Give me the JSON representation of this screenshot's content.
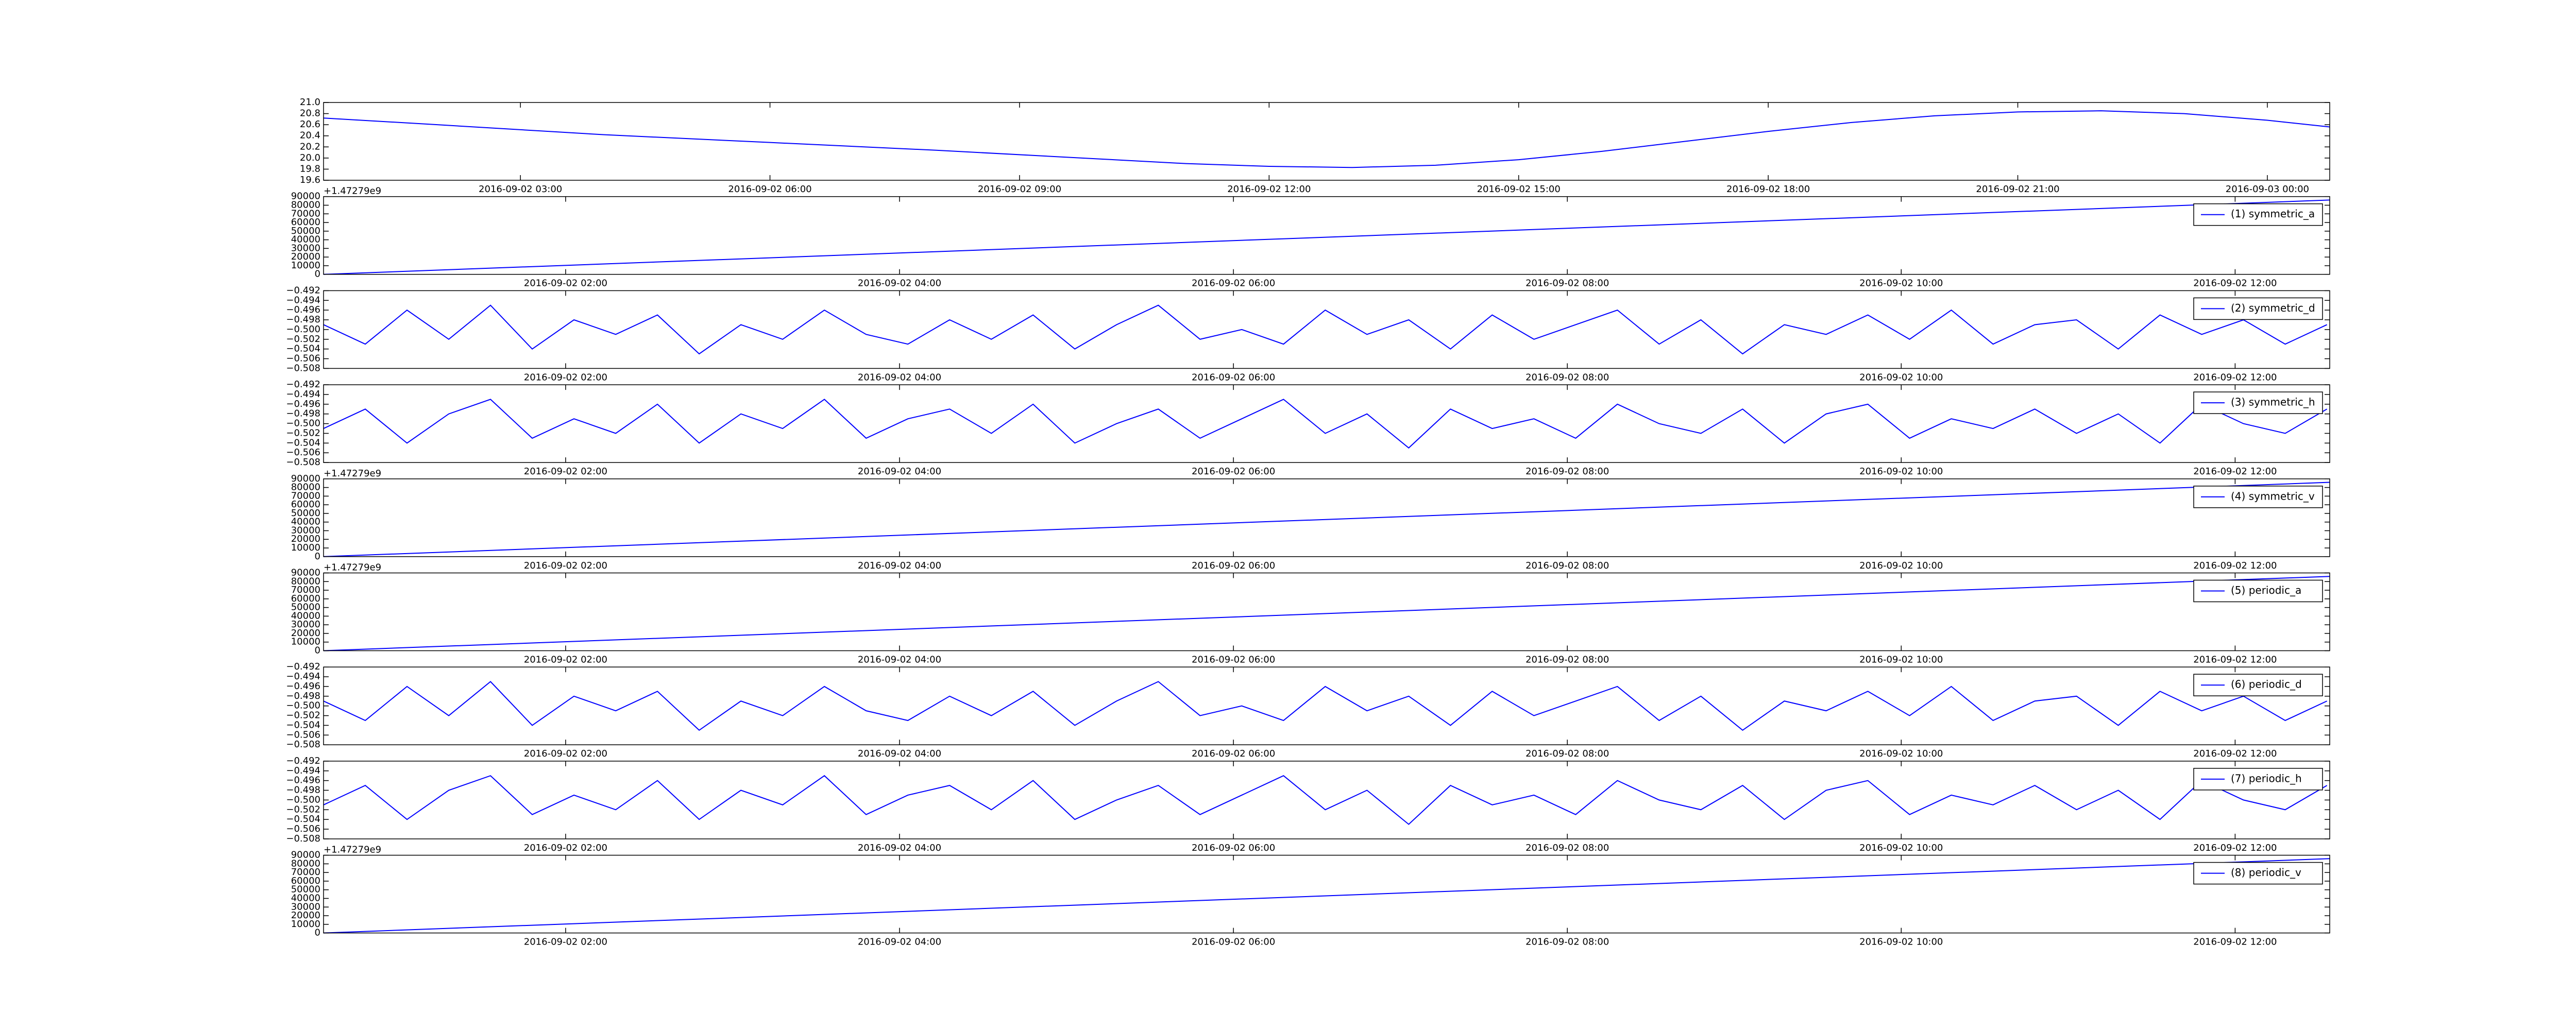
{
  "chart_data": [
    {
      "type": "line",
      "xlim": [
        "2016-09-02 00:38",
        "2016-09-03 00:45"
      ],
      "xticks": [
        "2016-09-02 03:00",
        "2016-09-02 06:00",
        "2016-09-02 09:00",
        "2016-09-02 12:00",
        "2016-09-02 15:00",
        "2016-09-02 18:00",
        "2016-09-02 21:00",
        "2016-09-03 00:00"
      ],
      "ylim": [
        19.6,
        21
      ],
      "yticks": [
        19.6,
        19.8,
        {
          "value": 20,
          "label": "20.0"
        },
        20.2,
        20.4,
        20.6,
        20.8,
        {
          "value": 21,
          "label": "21.0"
        }
      ],
      "x": [
        "2016-09-02 00:38",
        "2016-09-02 02:00",
        "2016-09-02 04:00",
        "2016-09-02 06:00",
        "2016-09-02 08:00",
        "2016-09-02 10:00",
        "2016-09-02 11:00",
        "2016-09-02 12:00",
        "2016-09-02 13:00",
        "2016-09-02 14:00",
        "2016-09-02 15:00",
        "2016-09-02 16:00",
        "2016-09-02 17:00",
        "2016-09-02 18:00",
        "2016-09-02 19:00",
        "2016-09-02 20:00",
        "2016-09-02 21:00",
        "2016-09-02 22:00",
        "2016-09-02 23:00",
        "2016-09-03 00:00",
        "2016-09-03 00:45"
      ],
      "series": [
        {
          "color": "#0000ff",
          "values": [
            20.72,
            20.6,
            20.42,
            20.28,
            20.14,
            19.98,
            19.9,
            19.85,
            19.83,
            19.87,
            19.97,
            20.12,
            20.3,
            20.48,
            20.64,
            20.76,
            20.83,
            20.85,
            20.8,
            20.68,
            20.56
          ]
        }
      ]
    },
    {
      "type": "line",
      "offset_text": "+1.47279e9",
      "legend": "upper right",
      "xlim": [
        "2016-09-02 00:33",
        "2016-09-02 12:34"
      ],
      "xticks": [
        "2016-09-02 02:00",
        "2016-09-02 04:00",
        "2016-09-02 06:00",
        "2016-09-02 08:00",
        "2016-09-02 10:00",
        "2016-09-02 12:00"
      ],
      "ylim": [
        0,
        90000
      ],
      "yticks": [
        0,
        10000,
        20000,
        30000,
        40000,
        50000,
        60000,
        70000,
        80000,
        90000
      ],
      "x": [
        "2016-09-02 00:33",
        "2016-09-02 12:34"
      ],
      "series": [
        {
          "name": "(1) symmetric_a",
          "color": "#0000ff",
          "values": [
            0,
            86000
          ]
        }
      ]
    },
    {
      "type": "line",
      "legend": "upper right",
      "xlim": [
        "2016-09-02 00:33",
        "2016-09-02 12:34"
      ],
      "xticks": [
        "2016-09-02 02:00",
        "2016-09-02 04:00",
        "2016-09-02 06:00",
        "2016-09-02 08:00",
        "2016-09-02 10:00",
        "2016-09-02 12:00"
      ],
      "ylim": [
        -0.508,
        -0.492
      ],
      "yticks": [
        {
          "value": -0.508,
          "label": "−0.508"
        },
        {
          "value": -0.506,
          "label": "−0.506"
        },
        {
          "value": -0.504,
          "label": "−0.504"
        },
        {
          "value": -0.502,
          "label": "−0.502"
        },
        {
          "value": -0.5,
          "label": "−0.500"
        },
        {
          "value": -0.498,
          "label": "−0.498"
        },
        {
          "value": -0.496,
          "label": "−0.496"
        },
        {
          "value": -0.494,
          "label": "−0.494"
        },
        {
          "value": -0.492,
          "label": "−0.492"
        }
      ],
      "x": [
        "2016-09-02 00:33",
        "2016-09-02 00:48",
        "2016-09-02 01:03",
        "2016-09-02 01:18",
        "2016-09-02 01:33",
        "2016-09-02 01:48",
        "2016-09-02 02:03",
        "2016-09-02 02:18",
        "2016-09-02 02:33",
        "2016-09-02 02:48",
        "2016-09-02 03:03",
        "2016-09-02 03:18",
        "2016-09-02 03:33",
        "2016-09-02 03:48",
        "2016-09-02 04:03",
        "2016-09-02 04:18",
        "2016-09-02 04:33",
        "2016-09-02 04:48",
        "2016-09-02 05:03",
        "2016-09-02 05:18",
        "2016-09-02 05:33",
        "2016-09-02 05:48",
        "2016-09-02 06:03",
        "2016-09-02 06:18",
        "2016-09-02 06:33",
        "2016-09-02 06:48",
        "2016-09-02 07:03",
        "2016-09-02 07:18",
        "2016-09-02 07:33",
        "2016-09-02 07:48",
        "2016-09-02 08:03",
        "2016-09-02 08:18",
        "2016-09-02 08:33",
        "2016-09-02 08:48",
        "2016-09-02 09:03",
        "2016-09-02 09:18",
        "2016-09-02 09:33",
        "2016-09-02 09:48",
        "2016-09-02 10:03",
        "2016-09-02 10:18",
        "2016-09-02 10:33",
        "2016-09-02 10:48",
        "2016-09-02 11:03",
        "2016-09-02 11:18",
        "2016-09-02 11:33",
        "2016-09-02 11:48",
        "2016-09-02 12:03",
        "2016-09-02 12:18",
        "2016-09-02 12:33"
      ],
      "series": [
        {
          "name": "(2) symmetric_d",
          "color": "#0000ff",
          "values": [
            -0.499,
            -0.503,
            -0.496,
            -0.502,
            -0.495,
            -0.504,
            -0.498,
            -0.501,
            -0.497,
            -0.505,
            -0.499,
            -0.502,
            -0.496,
            -0.501,
            -0.503,
            -0.498,
            -0.502,
            -0.497,
            -0.504,
            -0.499,
            -0.495,
            -0.502,
            -0.5,
            -0.503,
            -0.496,
            -0.501,
            -0.498,
            -0.504,
            -0.497,
            -0.502,
            -0.499,
            -0.496,
            -0.503,
            -0.498,
            -0.505,
            -0.499,
            -0.501,
            -0.497,
            -0.502,
            -0.496,
            -0.503,
            -0.499,
            -0.498,
            -0.504,
            -0.497,
            -0.501,
            -0.498,
            -0.503,
            -0.499
          ]
        }
      ]
    },
    {
      "type": "line",
      "legend": "upper right",
      "xlim": [
        "2016-09-02 00:33",
        "2016-09-02 12:34"
      ],
      "xticks": [
        "2016-09-02 02:00",
        "2016-09-02 04:00",
        "2016-09-02 06:00",
        "2016-09-02 08:00",
        "2016-09-02 10:00",
        "2016-09-02 12:00"
      ],
      "ylim": [
        -0.508,
        -0.492
      ],
      "yticks": [
        {
          "value": -0.508,
          "label": "−0.508"
        },
        {
          "value": -0.506,
          "label": "−0.506"
        },
        {
          "value": -0.504,
          "label": "−0.504"
        },
        {
          "value": -0.502,
          "label": "−0.502"
        },
        {
          "value": -0.5,
          "label": "−0.500"
        },
        {
          "value": -0.498,
          "label": "−0.498"
        },
        {
          "value": -0.496,
          "label": "−0.496"
        },
        {
          "value": -0.494,
          "label": "−0.494"
        },
        {
          "value": -0.492,
          "label": "−0.492"
        }
      ],
      "x": [
        "2016-09-02 00:33",
        "2016-09-02 00:48",
        "2016-09-02 01:03",
        "2016-09-02 01:18",
        "2016-09-02 01:33",
        "2016-09-02 01:48",
        "2016-09-02 02:03",
        "2016-09-02 02:18",
        "2016-09-02 02:33",
        "2016-09-02 02:48",
        "2016-09-02 03:03",
        "2016-09-02 03:18",
        "2016-09-02 03:33",
        "2016-09-02 03:48",
        "2016-09-02 04:03",
        "2016-09-02 04:18",
        "2016-09-02 04:33",
        "2016-09-02 04:48",
        "2016-09-02 05:03",
        "2016-09-02 05:18",
        "2016-09-02 05:33",
        "2016-09-02 05:48",
        "2016-09-02 06:03",
        "2016-09-02 06:18",
        "2016-09-02 06:33",
        "2016-09-02 06:48",
        "2016-09-02 07:03",
        "2016-09-02 07:18",
        "2016-09-02 07:33",
        "2016-09-02 07:48",
        "2016-09-02 08:03",
        "2016-09-02 08:18",
        "2016-09-02 08:33",
        "2016-09-02 08:48",
        "2016-09-02 09:03",
        "2016-09-02 09:18",
        "2016-09-02 09:33",
        "2016-09-02 09:48",
        "2016-09-02 10:03",
        "2016-09-02 10:18",
        "2016-09-02 10:33",
        "2016-09-02 10:48",
        "2016-09-02 11:03",
        "2016-09-02 11:18",
        "2016-09-02 11:33",
        "2016-09-02 11:48",
        "2016-09-02 12:03",
        "2016-09-02 12:18",
        "2016-09-02 12:33"
      ],
      "series": [
        {
          "name": "(3) symmetric_h",
          "color": "#0000ff",
          "values": [
            -0.501,
            -0.497,
            -0.504,
            -0.498,
            -0.495,
            -0.503,
            -0.499,
            -0.502,
            -0.496,
            -0.504,
            -0.498,
            -0.501,
            -0.495,
            -0.503,
            -0.499,
            -0.497,
            -0.502,
            -0.496,
            -0.504,
            -0.5,
            -0.497,
            -0.503,
            -0.499,
            -0.495,
            -0.502,
            -0.498,
            -0.505,
            -0.497,
            -0.501,
            -0.499,
            -0.503,
            -0.496,
            -0.5,
            -0.502,
            -0.497,
            -0.504,
            -0.498,
            -0.496,
            -0.503,
            -0.499,
            -0.501,
            -0.497,
            -0.502,
            -0.498,
            -0.504,
            -0.496,
            -0.5,
            -0.502,
            -0.497
          ]
        }
      ]
    },
    {
      "type": "line",
      "offset_text": "+1.47279e9",
      "legend": "upper right",
      "xlim": [
        "2016-09-02 00:33",
        "2016-09-02 12:34"
      ],
      "xticks": [
        "2016-09-02 02:00",
        "2016-09-02 04:00",
        "2016-09-02 06:00",
        "2016-09-02 08:00",
        "2016-09-02 10:00",
        "2016-09-02 12:00"
      ],
      "ylim": [
        0,
        90000
      ],
      "yticks": [
        0,
        10000,
        20000,
        30000,
        40000,
        50000,
        60000,
        70000,
        80000,
        90000
      ],
      "x": [
        "2016-09-02 00:33",
        "2016-09-02 12:34"
      ],
      "series": [
        {
          "name": "(4) symmetric_v",
          "color": "#0000ff",
          "values": [
            0,
            86000
          ]
        }
      ]
    },
    {
      "type": "line",
      "offset_text": "+1.47279e9",
      "legend": "upper right",
      "xlim": [
        "2016-09-02 00:33",
        "2016-09-02 12:34"
      ],
      "xticks": [
        "2016-09-02 02:00",
        "2016-09-02 04:00",
        "2016-09-02 06:00",
        "2016-09-02 08:00",
        "2016-09-02 10:00",
        "2016-09-02 12:00"
      ],
      "ylim": [
        0,
        90000
      ],
      "yticks": [
        0,
        10000,
        20000,
        30000,
        40000,
        50000,
        60000,
        70000,
        80000,
        90000
      ],
      "x": [
        "2016-09-02 00:33",
        "2016-09-02 12:34"
      ],
      "series": [
        {
          "name": "(5) periodic_a",
          "color": "#0000ff",
          "values": [
            0,
            86000
          ]
        }
      ]
    },
    {
      "type": "line",
      "legend": "upper right",
      "xlim": [
        "2016-09-02 00:33",
        "2016-09-02 12:34"
      ],
      "xticks": [
        "2016-09-02 02:00",
        "2016-09-02 04:00",
        "2016-09-02 06:00",
        "2016-09-02 08:00",
        "2016-09-02 10:00",
        "2016-09-02 12:00"
      ],
      "ylim": [
        -0.508,
        -0.492
      ],
      "yticks": [
        {
          "value": -0.508,
          "label": "−0.508"
        },
        {
          "value": -0.506,
          "label": "−0.506"
        },
        {
          "value": -0.504,
          "label": "−0.504"
        },
        {
          "value": -0.502,
          "label": "−0.502"
        },
        {
          "value": -0.5,
          "label": "−0.500"
        },
        {
          "value": -0.498,
          "label": "−0.498"
        },
        {
          "value": -0.496,
          "label": "−0.496"
        },
        {
          "value": -0.494,
          "label": "−0.494"
        },
        {
          "value": -0.492,
          "label": "−0.492"
        }
      ],
      "x": [
        "2016-09-02 00:33",
        "2016-09-02 00:48",
        "2016-09-02 01:03",
        "2016-09-02 01:18",
        "2016-09-02 01:33",
        "2016-09-02 01:48",
        "2016-09-02 02:03",
        "2016-09-02 02:18",
        "2016-09-02 02:33",
        "2016-09-02 02:48",
        "2016-09-02 03:03",
        "2016-09-02 03:18",
        "2016-09-02 03:33",
        "2016-09-02 03:48",
        "2016-09-02 04:03",
        "2016-09-02 04:18",
        "2016-09-02 04:33",
        "2016-09-02 04:48",
        "2016-09-02 05:03",
        "2016-09-02 05:18",
        "2016-09-02 05:33",
        "2016-09-02 05:48",
        "2016-09-02 06:03",
        "2016-09-02 06:18",
        "2016-09-02 06:33",
        "2016-09-02 06:48",
        "2016-09-02 07:03",
        "2016-09-02 07:18",
        "2016-09-02 07:33",
        "2016-09-02 07:48",
        "2016-09-02 08:03",
        "2016-09-02 08:18",
        "2016-09-02 08:33",
        "2016-09-02 08:48",
        "2016-09-02 09:03",
        "2016-09-02 09:18",
        "2016-09-02 09:33",
        "2016-09-02 09:48",
        "2016-09-02 10:03",
        "2016-09-02 10:18",
        "2016-09-02 10:33",
        "2016-09-02 10:48",
        "2016-09-02 11:03",
        "2016-09-02 11:18",
        "2016-09-02 11:33",
        "2016-09-02 11:48",
        "2016-09-02 12:03",
        "2016-09-02 12:18",
        "2016-09-02 12:33"
      ],
      "series": [
        {
          "name": "(6) periodic_d",
          "color": "#0000ff",
          "values": [
            -0.499,
            -0.503,
            -0.496,
            -0.502,
            -0.495,
            -0.504,
            -0.498,
            -0.501,
            -0.497,
            -0.505,
            -0.499,
            -0.502,
            -0.496,
            -0.501,
            -0.503,
            -0.498,
            -0.502,
            -0.497,
            -0.504,
            -0.499,
            -0.495,
            -0.502,
            -0.5,
            -0.503,
            -0.496,
            -0.501,
            -0.498,
            -0.504,
            -0.497,
            -0.502,
            -0.499,
            -0.496,
            -0.503,
            -0.498,
            -0.505,
            -0.499,
            -0.501,
            -0.497,
            -0.502,
            -0.496,
            -0.503,
            -0.499,
            -0.498,
            -0.504,
            -0.497,
            -0.501,
            -0.498,
            -0.503,
            -0.499
          ]
        }
      ]
    },
    {
      "type": "line",
      "legend": "upper right",
      "xlim": [
        "2016-09-02 00:33",
        "2016-09-02 12:34"
      ],
      "xticks": [
        "2016-09-02 02:00",
        "2016-09-02 04:00",
        "2016-09-02 06:00",
        "2016-09-02 08:00",
        "2016-09-02 10:00",
        "2016-09-02 12:00"
      ],
      "ylim": [
        -0.508,
        -0.492
      ],
      "yticks": [
        {
          "value": -0.508,
          "label": "−0.508"
        },
        {
          "value": -0.506,
          "label": "−0.506"
        },
        {
          "value": -0.504,
          "label": "−0.504"
        },
        {
          "value": -0.502,
          "label": "−0.502"
        },
        {
          "value": -0.5,
          "label": "−0.500"
        },
        {
          "value": -0.498,
          "label": "−0.498"
        },
        {
          "value": -0.496,
          "label": "−0.496"
        },
        {
          "value": -0.494,
          "label": "−0.494"
        },
        {
          "value": -0.492,
          "label": "−0.492"
        }
      ],
      "x": [
        "2016-09-02 00:33",
        "2016-09-02 00:48",
        "2016-09-02 01:03",
        "2016-09-02 01:18",
        "2016-09-02 01:33",
        "2016-09-02 01:48",
        "2016-09-02 02:03",
        "2016-09-02 02:18",
        "2016-09-02 02:33",
        "2016-09-02 02:48",
        "2016-09-02 03:03",
        "2016-09-02 03:18",
        "2016-09-02 03:33",
        "2016-09-02 03:48",
        "2016-09-02 04:03",
        "2016-09-02 04:18",
        "2016-09-02 04:33",
        "2016-09-02 04:48",
        "2016-09-02 05:03",
        "2016-09-02 05:18",
        "2016-09-02 05:33",
        "2016-09-02 05:48",
        "2016-09-02 06:03",
        "2016-09-02 06:18",
        "2016-09-02 06:33",
        "2016-09-02 06:48",
        "2016-09-02 07:03",
        "2016-09-02 07:18",
        "2016-09-02 07:33",
        "2016-09-02 07:48",
        "2016-09-02 08:03",
        "2016-09-02 08:18",
        "2016-09-02 08:33",
        "2016-09-02 08:48",
        "2016-09-02 09:03",
        "2016-09-02 09:18",
        "2016-09-02 09:33",
        "2016-09-02 09:48",
        "2016-09-02 10:03",
        "2016-09-02 10:18",
        "2016-09-02 10:33",
        "2016-09-02 10:48",
        "2016-09-02 11:03",
        "2016-09-02 11:18",
        "2016-09-02 11:33",
        "2016-09-02 11:48",
        "2016-09-02 12:03",
        "2016-09-02 12:18",
        "2016-09-02 12:33"
      ],
      "series": [
        {
          "name": "(7) periodic_h",
          "color": "#0000ff",
          "values": [
            -0.501,
            -0.497,
            -0.504,
            -0.498,
            -0.495,
            -0.503,
            -0.499,
            -0.502,
            -0.496,
            -0.504,
            -0.498,
            -0.501,
            -0.495,
            -0.503,
            -0.499,
            -0.497,
            -0.502,
            -0.496,
            -0.504,
            -0.5,
            -0.497,
            -0.503,
            -0.499,
            -0.495,
            -0.502,
            -0.498,
            -0.505,
            -0.497,
            -0.501,
            -0.499,
            -0.503,
            -0.496,
            -0.5,
            -0.502,
            -0.497,
            -0.504,
            -0.498,
            -0.496,
            -0.503,
            -0.499,
            -0.501,
            -0.497,
            -0.502,
            -0.498,
            -0.504,
            -0.496,
            -0.5,
            -0.502,
            -0.497
          ]
        }
      ]
    },
    {
      "type": "line",
      "offset_text": "+1.47279e9",
      "legend": "upper right",
      "xlim": [
        "2016-09-02 00:33",
        "2016-09-02 12:34"
      ],
      "xticks": [
        "2016-09-02 02:00",
        "2016-09-02 04:00",
        "2016-09-02 06:00",
        "2016-09-02 08:00",
        "2016-09-02 10:00",
        "2016-09-02 12:00"
      ],
      "ylim": [
        0,
        90000
      ],
      "yticks": [
        0,
        10000,
        20000,
        30000,
        40000,
        50000,
        60000,
        70000,
        80000,
        90000
      ],
      "x": [
        "2016-09-02 00:33",
        "2016-09-02 12:34"
      ],
      "series": [
        {
          "name": "(8) periodic_v",
          "color": "#0000ff",
          "values": [
            0,
            86000
          ]
        }
      ]
    }
  ]
}
